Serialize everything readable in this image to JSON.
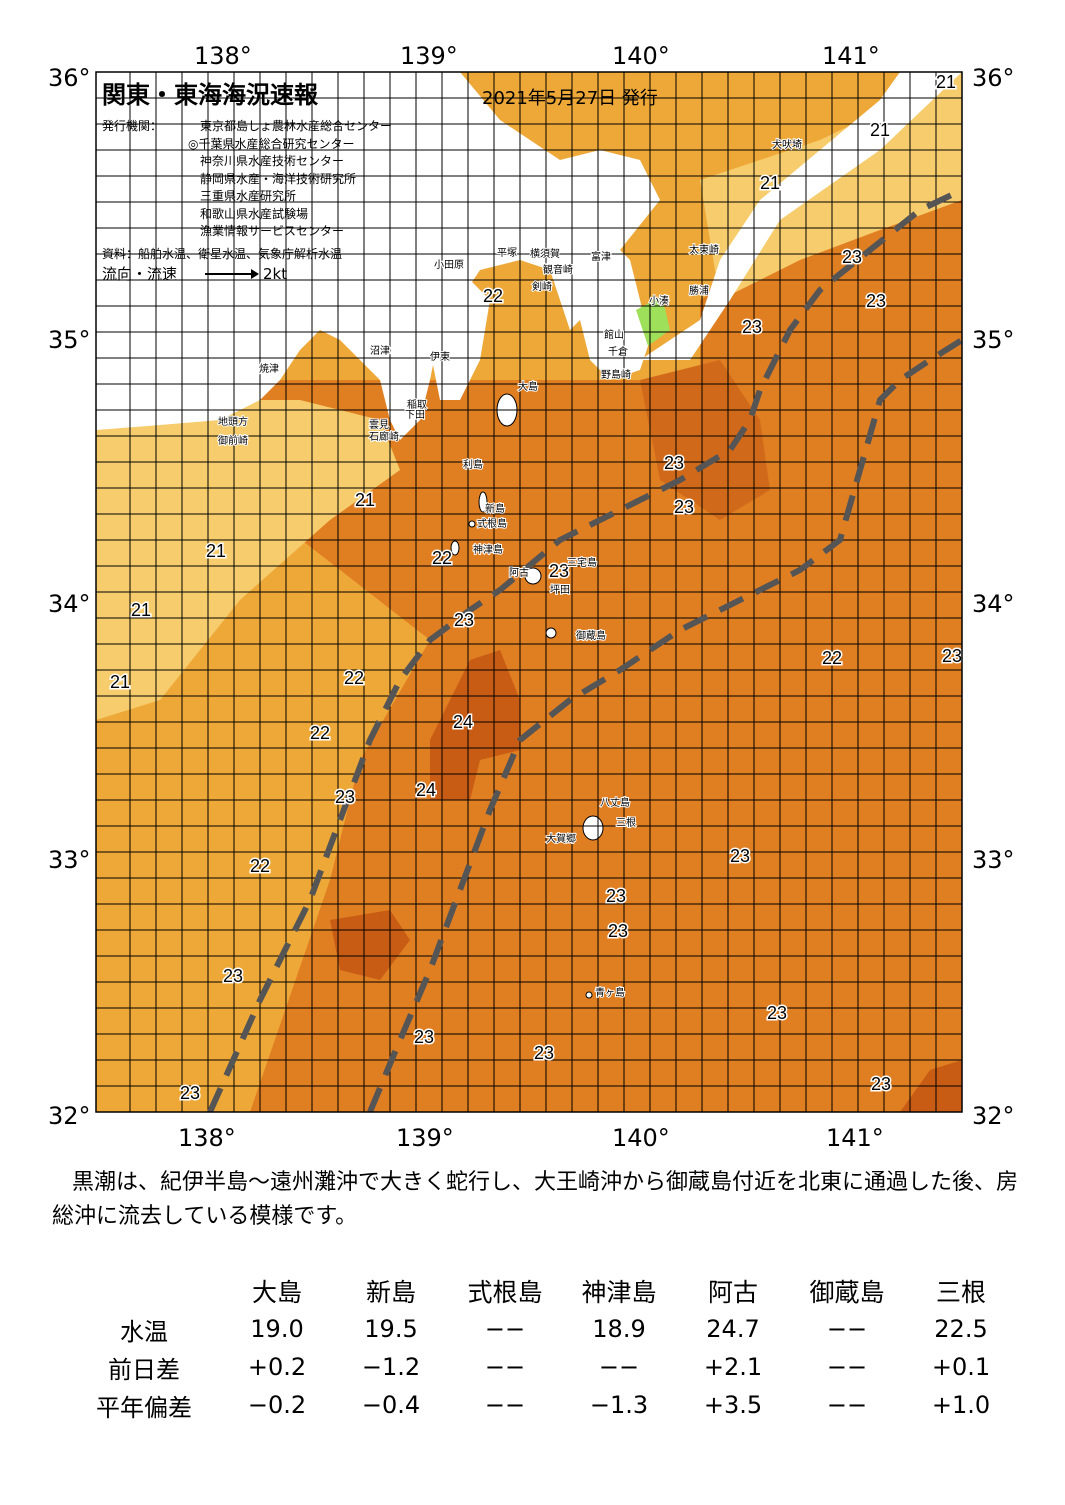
{
  "map": {
    "title": "関東・東海海況速報",
    "issue_date": "2021年5月27日 発行",
    "issuer_label": "発行機関：",
    "issuers": [
      "東京都島しょ農林水産総合センター",
      "◎千葉県水産総合研究センター",
      "神奈川県水産技術センター",
      "静岡県水産・海洋技術研究所",
      "三重県水産研究所",
      "和歌山県水産試験場",
      "漁業情報サービスセンター"
    ],
    "sources": "資料：船舶水温、衛星水温、気象庁解析水温",
    "legend_label": "流向・流速",
    "legend_speed": "2kt",
    "lon_labels": [
      "138°",
      "139°",
      "140°",
      "141°"
    ],
    "lat_labels": [
      "36°",
      "35°",
      "34°",
      "33°",
      "32°"
    ],
    "colors": {
      "land": "#ffffff",
      "temp_21": "#f6cc6c",
      "temp_22": "#eea838",
      "temp_23": "#e07e22",
      "temp_24": "#c85c14",
      "kuroshio_axis": "#555555",
      "grid": "#000000"
    },
    "temperature_labels": [
      "21",
      "21",
      "21",
      "21",
      "21",
      "21",
      "21",
      "22",
      "22",
      "22",
      "22",
      "22",
      "22",
      "23",
      "23",
      "23",
      "23",
      "23",
      "23",
      "23",
      "23",
      "23",
      "23",
      "23",
      "23",
      "23",
      "23",
      "23",
      "23",
      "23",
      "24",
      "24"
    ],
    "place_labels": [
      "小田原",
      "平塚",
      "横須賀",
      "観音崎",
      "剣崎",
      "富津",
      "館山",
      "千倉",
      "野島崎",
      "太東崎",
      "勝浦",
      "小湊",
      "犬吠埼",
      "沼津",
      "伊東",
      "焼津",
      "大島",
      "稲取",
      "下田",
      "雲見",
      "石廊崎",
      "地頭方",
      "御前崎",
      "利島",
      "新島",
      "式根島",
      "神津島",
      "阿古",
      "三宅島",
      "坪田",
      "御蔵島",
      "八丈島",
      "三根",
      "大賀郷",
      "青ヶ島"
    ]
  },
  "summary": "黒潮は、紀伊半島～遠州灘沖で大きく蛇行し、大王崎沖から御蔵島付近を北東に通過した後、房総沖に流去している模様です。",
  "observation_table": {
    "stations": [
      "大島",
      "新島",
      "式根島",
      "神津島",
      "阿古",
      "御蔵島",
      "三根"
    ],
    "rows": [
      {
        "label": "水温",
        "values": [
          "19.0",
          "19.5",
          "−−",
          "18.9",
          "24.7",
          "−−",
          "22.5"
        ]
      },
      {
        "label": "前日差",
        "values": [
          "+0.2",
          "−1.2",
          "−−",
          "−−",
          "+2.1",
          "−−",
          "+0.1"
        ]
      },
      {
        "label": "平年偏差",
        "values": [
          "−0.2",
          "−0.4",
          "−−",
          "−1.3",
          "+3.5",
          "−−",
          "+1.0"
        ]
      }
    ]
  }
}
